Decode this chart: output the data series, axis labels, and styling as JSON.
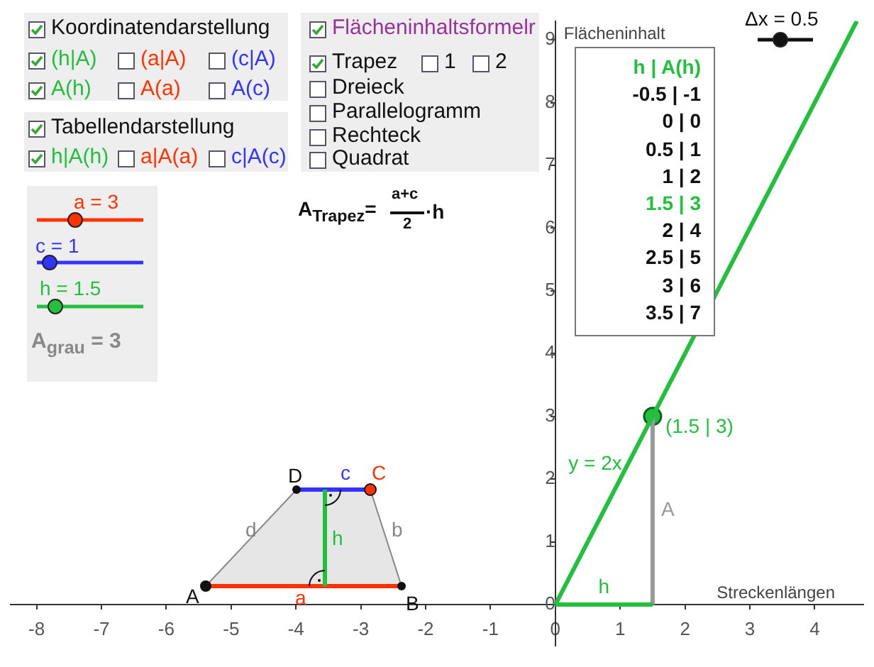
{
  "chart_data": {
    "type": "line",
    "xlabel": "Streckenlängen",
    "ylabel": "Flächeninhalt",
    "xlim": [
      -8.4,
      4.75
    ],
    "ylim": [
      -0.66,
      9.3
    ],
    "xticks": [
      -8,
      -7,
      -6,
      -5,
      -4,
      -3,
      -2,
      -1,
      0,
      1,
      2,
      3,
      4
    ],
    "yticks": [
      0,
      1,
      2,
      3,
      4,
      5,
      6,
      7,
      8,
      9
    ],
    "series": [
      {
        "name": "y = 2x",
        "color": "#22c03c",
        "x": [
          0,
          4.65
        ],
        "values": [
          0,
          9.3
        ]
      },
      {
        "name": "h",
        "type": "line",
        "color": "#22c03c",
        "x": [
          0,
          1.5
        ],
        "values": [
          0,
          0
        ]
      },
      {
        "name": "A",
        "type": "line",
        "color": "#999999",
        "x": [
          1.5,
          1.5
        ],
        "values": [
          0,
          3
        ]
      },
      {
        "type": "scatter",
        "color": "#22c03c",
        "marker": "circle",
        "x": [
          1.5
        ],
        "values": [
          3
        ],
        "value_labels": [
          "(1.5 | 3)"
        ]
      }
    ],
    "annotations": [
      "Koordinatendarstellung",
      "(h|A)",
      "(a|A)",
      "(c|A)",
      "A(h)",
      "A(a)",
      "A(c)",
      "Tabellendarstellung",
      "h|A(h)",
      "a|A(a)",
      "c|A(c)",
      "Flächeninhaltsformelr",
      "Trapez",
      "1",
      "2",
      "Dreieck",
      "Parallelogramm",
      "Rechteck",
      "Quadrat",
      "a = 3",
      "c = 1",
      "h = 1.5",
      "A$_{grau}$ = 3",
      "A$_{Trapez}$=",
      "a+c",
      "2",
      "·h",
      "Δx = 0.5",
      "A",
      "B",
      "C",
      "D",
      "a",
      "b",
      "c",
      "d",
      "h",
      "h | A(h)",
      "-0.5 | -1",
      "0 | 0",
      "0.5 | 1",
      "1 | 2",
      "1.5 | 3",
      "2 | 4",
      "2.5 | 5",
      "3 | 6",
      "3.5 | 7"
    ]
  }
}
